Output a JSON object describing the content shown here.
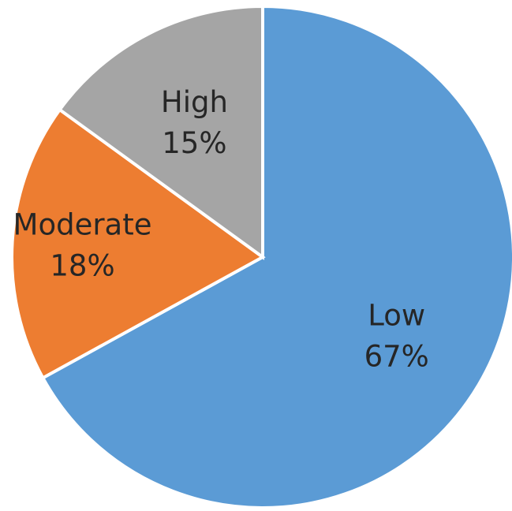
{
  "chart_data": {
    "type": "pie",
    "title": "",
    "legend": "none",
    "slices": [
      {
        "label": "Low",
        "value": 67,
        "value_label": "67%",
        "color": "#5B9BD5"
      },
      {
        "label": "Moderate",
        "value": 18,
        "value_label": "18%",
        "color": "#ED7D31"
      },
      {
        "label": "High",
        "value": 15,
        "value_label": "15%",
        "color": "#A5A5A5"
      }
    ]
  }
}
